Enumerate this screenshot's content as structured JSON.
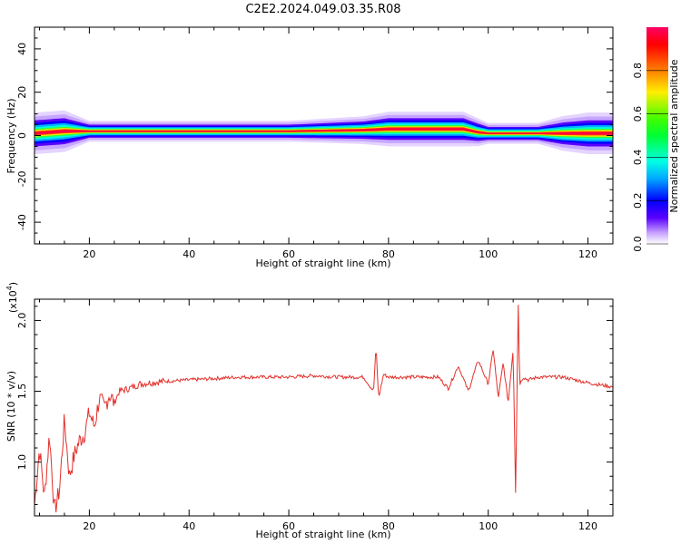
{
  "title": "C2E2.2024.049.03.35.R08",
  "chart_data": [
    {
      "type": "heatmap",
      "xlabel": "Height of straight line (km)",
      "ylabel": "Frequency (Hz)",
      "xlim": [
        9,
        125
      ],
      "ylim": [
        -50,
        50
      ],
      "xticks": [
        "20",
        "40",
        "60",
        "80",
        "100",
        "120"
      ],
      "yticks": [
        "40",
        "20",
        "0",
        "-20",
        "-40"
      ],
      "colorbar": {
        "label": "Normalized spectral amplitude",
        "range": [
          0,
          1
        ],
        "ticks": [
          "0.0",
          "0.2",
          "0.4",
          "0.6",
          "0.8"
        ]
      },
      "peak_band": {
        "x": [
          9,
          15,
          20,
          40,
          60,
          75,
          80,
          85,
          90,
          95,
          98,
          100,
          105,
          110,
          115,
          120,
          125
        ],
        "center_hz": [
          1,
          2,
          2,
          2,
          2,
          2.5,
          3,
          3,
          3,
          3,
          1.5,
          1,
          1,
          1,
          1,
          1,
          1
        ],
        "spread_hz": [
          3,
          3,
          1.5,
          1.5,
          1.5,
          2,
          2.5,
          2.5,
          2.5,
          2.5,
          2,
          1.5,
          1.5,
          1.5,
          2.5,
          3,
          3
        ]
      }
    },
    {
      "type": "line",
      "xlabel": "Height of straight line (km)",
      "ylabel": "SNR (10 * v/v)",
      "multiplier": "(x10",
      "exponent": "4",
      "multiplier_close": ")",
      "xlim": [
        9,
        125
      ],
      "ylim": [
        0.62,
        2.15
      ],
      "xticks": [
        "20",
        "40",
        "60",
        "80",
        "100",
        "120"
      ],
      "yticks": [
        "1.0",
        "1.5",
        "2.0"
      ],
      "series": [
        {
          "color": "#e3302b",
          "x": [
            9,
            10,
            11,
            12,
            13,
            14,
            15,
            16,
            17,
            18,
            19,
            20,
            21,
            22,
            23,
            24,
            25,
            26,
            28,
            30,
            32,
            35,
            40,
            45,
            50,
            55,
            60,
            65,
            70,
            75,
            77,
            77.5,
            78,
            79,
            80,
            85,
            90,
            92,
            94,
            96,
            98,
            100,
            101,
            102,
            103,
            104,
            105,
            105.5,
            106,
            106.3,
            107,
            108,
            110,
            115,
            120,
            125
          ],
          "y": [
            0.7,
            1.1,
            0.75,
            1.2,
            0.65,
            0.8,
            1.3,
            0.9,
            1.05,
            1.15,
            1.2,
            1.35,
            1.25,
            1.45,
            1.38,
            1.48,
            1.42,
            1.5,
            1.52,
            1.55,
            1.56,
            1.57,
            1.58,
            1.59,
            1.6,
            1.6,
            1.6,
            1.61,
            1.6,
            1.6,
            1.5,
            1.82,
            1.45,
            1.62,
            1.6,
            1.6,
            1.6,
            1.52,
            1.68,
            1.5,
            1.72,
            1.55,
            1.8,
            1.45,
            1.7,
            1.42,
            1.8,
            0.75,
            2.15,
            1.55,
            1.6,
            1.58,
            1.6,
            1.6,
            1.56,
            1.53
          ]
        }
      ]
    }
  ]
}
